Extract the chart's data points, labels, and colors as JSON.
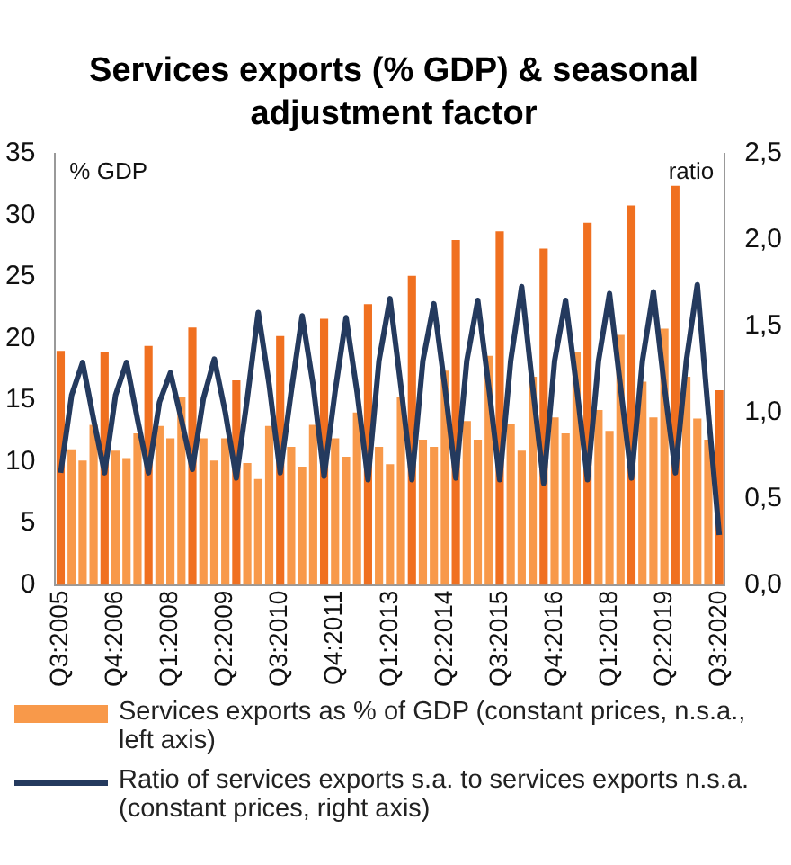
{
  "chart_data": {
    "type": "bar",
    "title": "Services exports (% GDP) & seasonal adjustment factor",
    "ylabel": "% GDP",
    "y2label": "ratio",
    "categories": [
      "Q3:2005",
      null,
      null,
      null,
      null,
      "Q4:2006",
      null,
      null,
      null,
      null,
      "Q1:2008",
      null,
      null,
      null,
      null,
      "Q2:2009",
      null,
      null,
      null,
      null,
      "Q3:2010",
      null,
      null,
      null,
      null,
      "Q4:2011",
      null,
      null,
      null,
      null,
      "Q1:2013",
      null,
      null,
      null,
      null,
      "Q2:2014",
      null,
      null,
      null,
      null,
      "Q3:2015",
      null,
      null,
      null,
      null,
      "Q4:2016",
      null,
      null,
      null,
      null,
      "Q1:2018",
      null,
      null,
      null,
      null,
      "Q2:2019",
      null,
      null,
      null,
      null,
      "Q3:2020"
    ],
    "series": [
      {
        "name": "Services exports as % of GDP (constant prices, n.s.a., left axis)",
        "color": "#f8994a",
        "colors": [
          "#f07020",
          "#f8994a",
          "#f8994a",
          "#f8994a",
          "#f07020",
          "#f8994a",
          "#f8994a",
          "#f8994a",
          "#f07020",
          "#f8994a",
          "#f8994a",
          "#f8994a",
          "#f07020",
          "#f8994a",
          "#f8994a",
          "#f8994a",
          "#f07020",
          "#f8994a",
          "#f8994a",
          "#f8994a",
          "#f07020",
          "#f8994a",
          "#f8994a",
          "#f8994a",
          "#f07020",
          "#f8994a",
          "#f8994a",
          "#f8994a",
          "#f07020",
          "#f8994a",
          "#f8994a",
          "#f8994a",
          "#f07020",
          "#f8994a",
          "#f8994a",
          "#f8994a",
          "#f07020",
          "#f8994a",
          "#f8994a",
          "#f8994a",
          "#f07020",
          "#f8994a",
          "#f8994a",
          "#f8994a",
          "#f07020",
          "#f8994a",
          "#f8994a",
          "#f8994a",
          "#f07020",
          "#f8994a",
          "#f8994a",
          "#f8994a",
          "#f07020",
          "#f8994a",
          "#f8994a",
          "#f8994a",
          "#f07020",
          "#f8994a",
          "#f8994a",
          "#f8994a",
          "#f07020"
        ],
        "values": [
          19.0,
          11.0,
          10.1,
          13.0,
          18.9,
          10.9,
          10.3,
          12.3,
          19.4,
          12.9,
          11.9,
          15.3,
          20.9,
          11.9,
          10.1,
          11.9,
          16.6,
          9.9,
          8.6,
          12.9,
          20.2,
          11.2,
          9.6,
          13.0,
          21.6,
          11.9,
          10.4,
          14.0,
          22.8,
          11.2,
          9.8,
          15.3,
          25.1,
          11.8,
          11.2,
          17.4,
          28.0,
          13.3,
          11.8,
          18.6,
          28.7,
          13.1,
          10.9,
          16.9,
          27.3,
          13.6,
          12.3,
          18.9,
          29.4,
          14.2,
          12.5,
          20.3,
          30.8,
          16.5,
          13.6,
          20.8,
          32.4,
          16.9,
          13.5,
          11.8,
          15.8
        ]
      },
      {
        "name": "Ratio of services exports s.a. to services exports n.s.a. (constant prices, right axis)",
        "type": "line",
        "axis": "y2",
        "color": "#243a5e",
        "values": [
          0.65,
          1.1,
          1.29,
          0.96,
          0.65,
          1.1,
          1.29,
          0.96,
          0.65,
          1.06,
          1.23,
          0.96,
          0.67,
          1.08,
          1.31,
          1.0,
          0.62,
          1.08,
          1.58,
          1.16,
          0.65,
          1.12,
          1.56,
          1.16,
          0.63,
          1.12,
          1.55,
          1.12,
          0.61,
          1.3,
          1.66,
          1.15,
          0.61,
          1.3,
          1.63,
          1.15,
          0.62,
          1.3,
          1.65,
          1.15,
          0.61,
          1.3,
          1.73,
          1.15,
          0.59,
          1.3,
          1.65,
          1.15,
          0.61,
          1.3,
          1.69,
          1.15,
          0.62,
          1.3,
          1.7,
          1.15,
          0.65,
          1.3,
          1.74,
          1.0,
          0.29
        ]
      }
    ],
    "ylim": [
      0,
      35
    ],
    "yticks": [
      0,
      5,
      10,
      15,
      20,
      25,
      30,
      35
    ],
    "y2lim": [
      0,
      2.5
    ],
    "y2ticks": [
      {
        "value": 0,
        "label": "0,0"
      },
      {
        "value": 0.5,
        "label": "0,5"
      },
      {
        "value": 1,
        "label": "1,0"
      },
      {
        "value": 1.5,
        "label": "1,5"
      },
      {
        "value": 2,
        "label": "2,0"
      },
      {
        "value": 2.5,
        "label": "2,5"
      }
    ],
    "grid": false,
    "legend": "bottom"
  }
}
